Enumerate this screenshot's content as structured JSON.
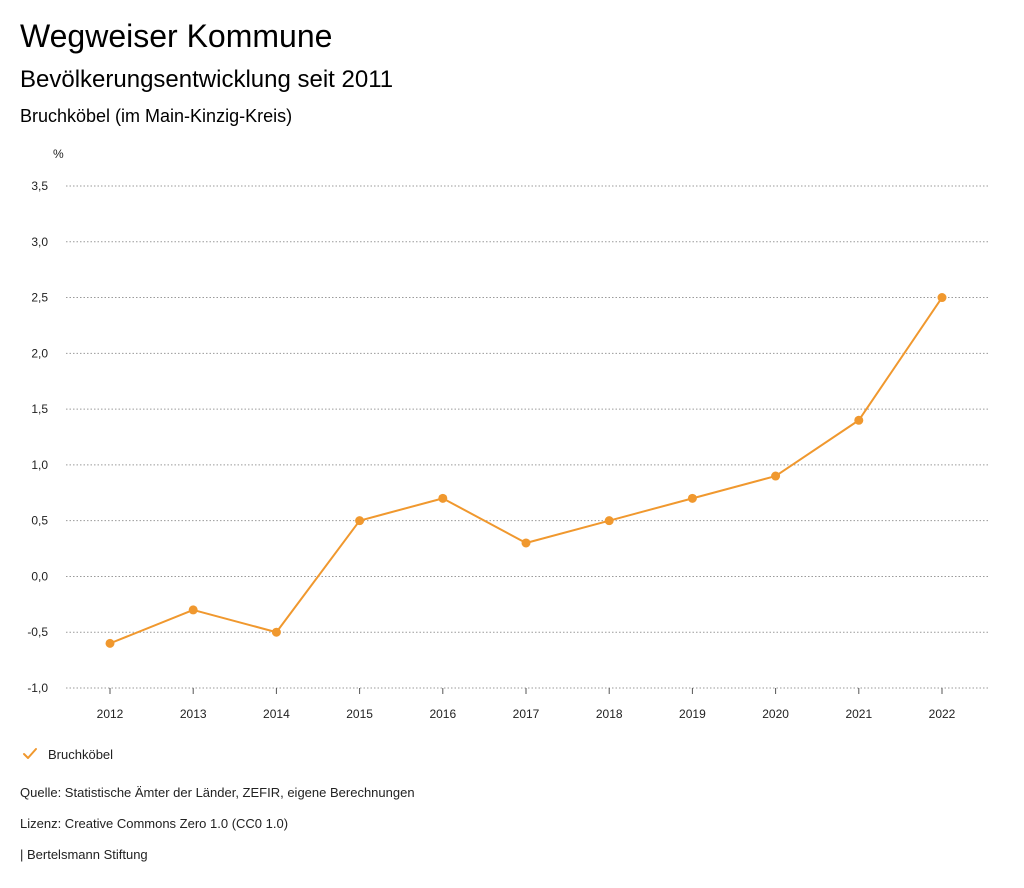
{
  "header": {
    "title": "Wegweiser Kommune",
    "subtitle": "Bevölkerungsentwicklung seit 2011",
    "region": "Bruchköbel (im Main-Kinzig-Kreis)"
  },
  "chart_data": {
    "type": "line",
    "ylabel": "%",
    "ylim": [
      -1.0,
      3.5
    ],
    "grid": true,
    "yticks": [
      "-1,0",
      "-0,5",
      "0,0",
      "0,5",
      "1,0",
      "1,5",
      "2,0",
      "2,5",
      "3,0",
      "3,5"
    ],
    "ytick_values": [
      -1.0,
      -0.5,
      0.0,
      0.5,
      1.0,
      1.5,
      2.0,
      2.5,
      3.0,
      3.5
    ],
    "categories": [
      "2012",
      "2013",
      "2014",
      "2015",
      "2016",
      "2017",
      "2018",
      "2019",
      "2020",
      "2021",
      "2022"
    ],
    "series": [
      {
        "name": "Bruchköbel",
        "color": "#f0982e",
        "values": [
          -0.6,
          -0.3,
          -0.5,
          0.5,
          0.7,
          0.3,
          0.5,
          0.7,
          0.9,
          1.4,
          2.5
        ]
      }
    ],
    "legend_position": "bottom-left"
  },
  "legend": {
    "label": "Bruchköbel",
    "color": "#f0982e"
  },
  "footer": {
    "source": "Quelle: Statistische Ämter der Länder, ZEFIR, eigene Berechnungen",
    "license": "Lizenz: Creative Commons Zero 1.0 (CC0 1.0)",
    "publisher": "| Bertelsmann Stiftung"
  }
}
